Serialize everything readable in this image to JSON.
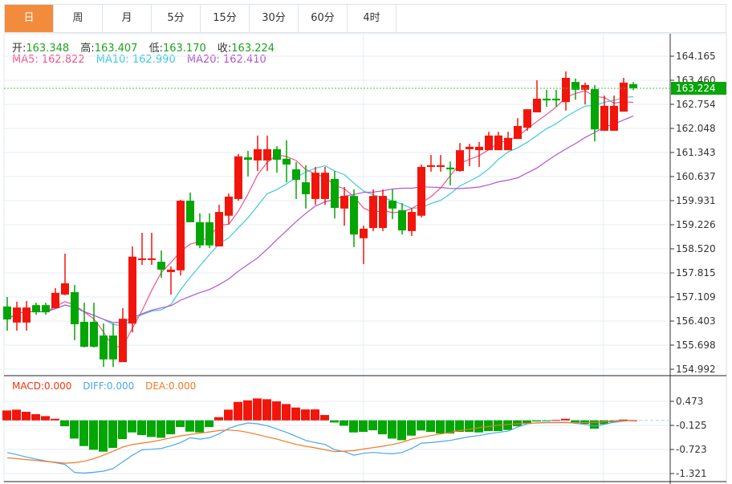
{
  "tabs": [
    "日",
    "周",
    "月",
    "5分",
    "15分",
    "30分",
    "60分",
    "4时"
  ],
  "active_tab": 0,
  "ohlc": {
    "open_label": "开:",
    "open": "163.348",
    "high_label": "高:",
    "high": "163.407",
    "low_label": "低:",
    "low": "163.170",
    "close_label": "收:",
    "close": "163.224"
  },
  "ma_legend": {
    "ma5": "MA5: 162.822",
    "ma10": "MA10: 162.990",
    "ma20": "MA20: 162.410"
  },
  "macd_legend": {
    "macd": "MACD:0.000",
    "diff": "DIFF:0.000",
    "dea": "DEA:0.000"
  },
  "colors": {
    "up": "#f2150b",
    "down": "#03a603",
    "ma5": "#f0558c",
    "ma10": "#3ec8e2",
    "ma20": "#b455cc",
    "diff": "#4aa6f0",
    "dea": "#f27a22",
    "last_price_bg": "#0aa50a",
    "tab_active": "#f28c3c"
  },
  "chart_data": [
    {
      "type": "candlestick",
      "title": "",
      "last_price": "163.224",
      "y_ticks": [
        "164.165",
        "163.460",
        "162.754",
        "162.048",
        "161.343",
        "160.637",
        "159.931",
        "159.226",
        "158.520",
        "157.815",
        "157.109",
        "156.403",
        "155.698",
        "154.992"
      ],
      "ylim": [
        154.992,
        164.165
      ],
      "candles": [
        [
          156.83,
          157.11,
          156.12,
          156.45
        ],
        [
          156.36,
          156.97,
          156.12,
          156.8
        ],
        [
          156.36,
          156.99,
          156.12,
          156.8
        ],
        [
          156.87,
          156.94,
          156.59,
          156.66
        ],
        [
          156.87,
          156.94,
          156.59,
          156.66
        ],
        [
          156.78,
          157.37,
          156.78,
          157.23
        ],
        [
          157.18,
          158.38,
          157.16,
          157.51
        ],
        [
          157.25,
          157.46,
          155.84,
          156.31
        ],
        [
          156.38,
          156.94,
          155.63,
          155.65
        ],
        [
          156.38,
          156.94,
          155.63,
          155.65
        ],
        [
          155.98,
          156.33,
          155.06,
          155.28
        ],
        [
          155.98,
          156.33,
          155.06,
          155.28
        ],
        [
          155.2,
          156.78,
          155.2,
          156.47
        ],
        [
          156.33,
          158.59,
          156.07,
          158.29
        ],
        [
          158.22,
          158.99,
          158.05,
          158.24
        ],
        [
          158.22,
          158.99,
          158.05,
          158.24
        ],
        [
          158.14,
          158.47,
          157.67,
          157.91
        ],
        [
          157.84,
          158.0,
          157.18,
          157.91
        ],
        [
          157.89,
          159.96,
          157.74,
          159.93
        ],
        [
          159.93,
          160.17,
          159.3,
          159.3
        ],
        [
          159.3,
          159.56,
          158.54,
          158.62
        ],
        [
          159.3,
          159.56,
          158.54,
          158.62
        ],
        [
          158.59,
          159.81,
          158.59,
          159.6
        ],
        [
          159.49,
          160.14,
          159.25,
          160.05
        ],
        [
          159.98,
          161.3,
          159.93,
          161.23
        ],
        [
          161.2,
          161.39,
          160.64,
          161.13
        ],
        [
          161.11,
          161.84,
          160.8,
          161.44
        ],
        [
          161.11,
          161.84,
          160.8,
          161.44
        ],
        [
          161.44,
          161.53,
          160.75,
          161.13
        ],
        [
          161.16,
          161.7,
          160.47,
          160.99
        ],
        [
          160.85,
          161.06,
          159.98,
          160.54
        ],
        [
          160.47,
          160.97,
          159.7,
          160.12
        ],
        [
          159.98,
          160.92,
          159.81,
          160.75
        ],
        [
          159.98,
          160.92,
          159.81,
          160.75
        ],
        [
          160.57,
          160.8,
          159.41,
          159.72
        ],
        [
          159.7,
          160.33,
          159.2,
          160.07
        ],
        [
          160.07,
          160.26,
          158.57,
          158.94
        ],
        [
          158.83,
          159.2,
          158.07,
          159.11
        ],
        [
          159.13,
          160.26,
          159.04,
          160.07
        ],
        [
          159.13,
          160.26,
          159.04,
          160.07
        ],
        [
          159.93,
          160.26,
          159.39,
          159.7
        ],
        [
          159.65,
          159.86,
          158.94,
          159.06
        ],
        [
          159.04,
          159.72,
          158.9,
          159.6
        ],
        [
          159.49,
          160.99,
          159.44,
          160.92
        ],
        [
          160.92,
          161.27,
          160.78,
          160.97
        ],
        [
          160.92,
          161.27,
          160.78,
          160.97
        ],
        [
          160.9,
          161.08,
          160.38,
          160.85
        ],
        [
          160.8,
          161.62,
          160.78,
          161.41
        ],
        [
          161.44,
          161.6,
          160.94,
          161.51
        ],
        [
          161.41,
          161.65,
          160.92,
          161.51
        ],
        [
          161.41,
          161.95,
          161.41,
          161.84
        ],
        [
          161.41,
          161.95,
          161.41,
          161.84
        ],
        [
          161.41,
          161.95,
          161.41,
          161.77
        ],
        [
          161.74,
          162.35,
          161.74,
          162.12
        ],
        [
          162.07,
          162.61,
          161.98,
          162.61
        ],
        [
          162.52,
          163.46,
          162.52,
          162.92
        ],
        [
          162.92,
          163.18,
          162.68,
          162.87
        ],
        [
          162.92,
          163.18,
          162.68,
          162.87
        ],
        [
          162.82,
          163.72,
          162.57,
          163.53
        ],
        [
          163.41,
          163.51,
          162.89,
          163.18
        ],
        [
          163.18,
          163.39,
          162.75,
          163.32
        ],
        [
          163.2,
          163.32,
          161.67,
          162.02
        ],
        [
          161.98,
          163.01,
          161.98,
          162.71
        ],
        [
          161.98,
          163.01,
          161.98,
          162.71
        ],
        [
          162.54,
          163.53,
          162.54,
          163.39
        ],
        [
          163.348,
          163.407,
          163.17,
          163.224
        ]
      ],
      "ma_periods": [
        5,
        10,
        20
      ]
    },
    {
      "type": "bar+line",
      "title": "MACD",
      "y_ticks": [
        "0.473",
        "-0.125",
        "-0.723",
        "-1.321"
      ],
      "ylim": [
        -1.321,
        0.473
      ],
      "macd": [
        0.246,
        0.266,
        0.213,
        0.153,
        0.106,
        0.04,
        -0.146,
        -0.452,
        -0.638,
        -0.731,
        -0.777,
        -0.684,
        -0.465,
        -0.299,
        -0.365,
        -0.412,
        -0.432,
        -0.346,
        -0.166,
        -0.279,
        -0.299,
        -0.166,
        0.08,
        0.266,
        0.458,
        0.498,
        0.545,
        0.525,
        0.472,
        0.405,
        0.319,
        0.272,
        0.272,
        0.133,
        -0.053,
        -0.133,
        -0.299,
        -0.286,
        -0.246,
        -0.346,
        -0.452,
        -0.492,
        -0.379,
        -0.252,
        -0.286,
        -0.326,
        -0.326,
        -0.286,
        -0.286,
        -0.299,
        -0.266,
        -0.266,
        -0.239,
        -0.146,
        -0.066,
        -0.027,
        -0.02,
        0.01,
        0.04,
        -0.047,
        -0.086,
        -0.206,
        -0.093,
        -0.047,
        0.02,
        0.0
      ],
      "diff": [
        -0.797,
        -0.85,
        -0.91,
        -0.963,
        -1.01,
        -1.05,
        -1.096,
        -1.295,
        -1.309,
        -1.29,
        -1.262,
        -1.196,
        -1.03,
        -0.864,
        -0.731,
        -0.717,
        -0.698,
        -0.631,
        -0.551,
        -0.432,
        -0.465,
        -0.432,
        -0.332,
        -0.199,
        -0.12,
        -0.066,
        -0.086,
        -0.133,
        -0.213,
        -0.299,
        -0.399,
        -0.498,
        -0.551,
        -0.598,
        -0.731,
        -0.777,
        -0.864,
        -0.817,
        -0.797,
        -0.817,
        -0.83,
        -0.797,
        -0.698,
        -0.565,
        -0.551,
        -0.525,
        -0.498,
        -0.452,
        -0.405,
        -0.379,
        -0.332,
        -0.299,
        -0.266,
        -0.166,
        -0.086,
        -0.06,
        -0.053,
        -0.053,
        -0.047,
        -0.073,
        -0.1,
        -0.14,
        -0.1,
        -0.047,
        -0.02,
        0.0
      ],
      "dea": [
        -0.93,
        -0.95,
        -0.975,
        -0.997,
        -1.02,
        -1.04,
        -1.063,
        -1.05,
        -1.017,
        -0.95,
        -0.864,
        -0.764,
        -0.664,
        -0.598,
        -0.565,
        -0.532,
        -0.485,
        -0.432,
        -0.385,
        -0.352,
        -0.319,
        -0.286,
        -0.252,
        -0.239,
        -0.259,
        -0.299,
        -0.352,
        -0.412,
        -0.465,
        -0.532,
        -0.598,
        -0.644,
        -0.684,
        -0.731,
        -0.777,
        -0.764,
        -0.751,
        -0.711,
        -0.678,
        -0.644,
        -0.598,
        -0.545,
        -0.465,
        -0.419,
        -0.379,
        -0.339,
        -0.299,
        -0.252,
        -0.219,
        -0.179,
        -0.153,
        -0.12,
        -0.1,
        -0.086,
        -0.073,
        -0.066,
        -0.06,
        -0.06,
        -0.06,
        -0.06,
        -0.053,
        -0.047,
        -0.033,
        -0.02,
        -0.007,
        0.0
      ]
    }
  ]
}
